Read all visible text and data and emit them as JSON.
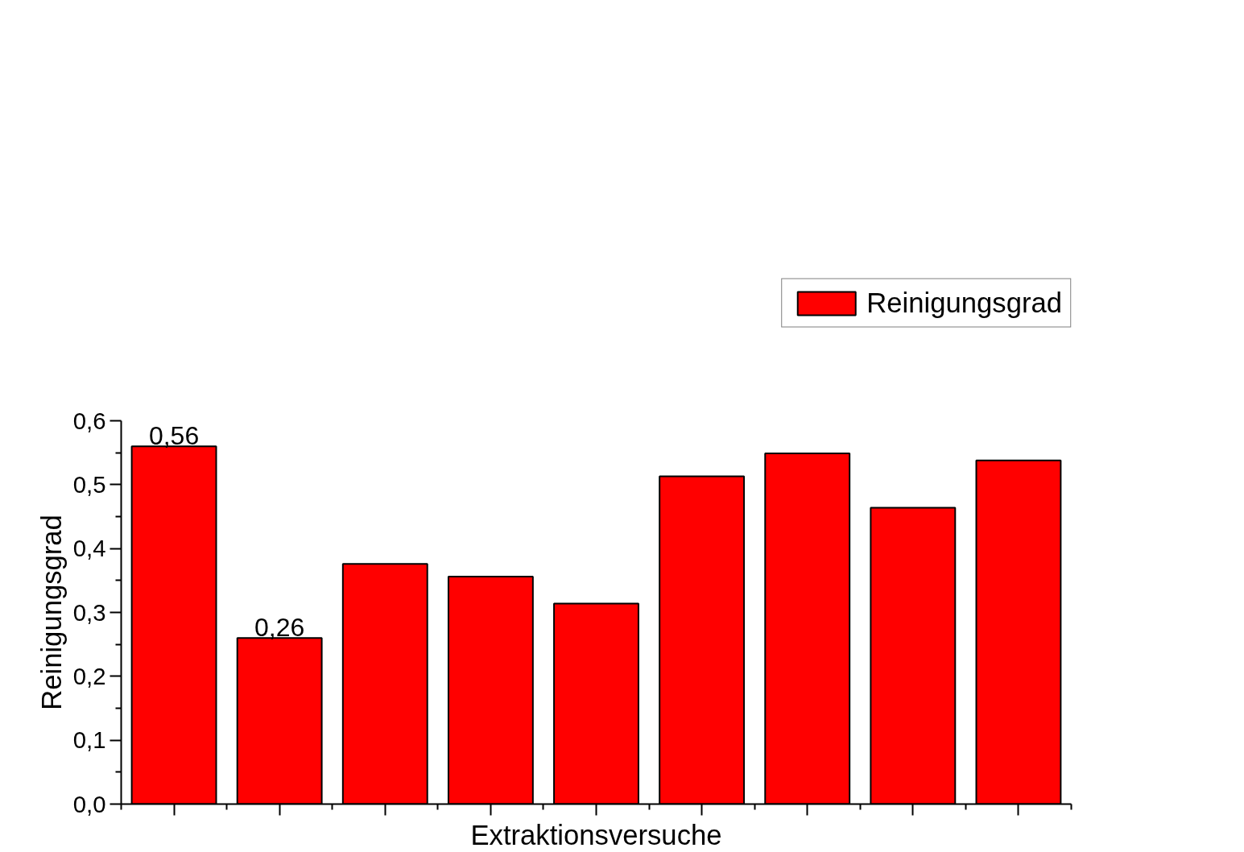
{
  "chart_data": {
    "type": "bar",
    "xlabel": "Extraktionsversuche",
    "ylabel": "Reinigungsgrad",
    "categories": [
      null,
      null,
      null,
      null,
      null,
      null,
      null,
      null,
      null
    ],
    "series": [
      {
        "name": "Reinigungsgrad",
        "color": "#ff0000",
        "values": [
          0.56,
          0.26,
          0.376,
          0.356,
          0.314,
          0.513,
          0.549,
          0.464,
          0.538
        ],
        "value_labels": [
          "0,56",
          "0,26",
          null,
          null,
          null,
          null,
          null,
          null,
          null
        ]
      }
    ],
    "ylim": [
      0,
      0.6
    ],
    "yticks": [
      {
        "value": 0,
        "label": "0,0"
      },
      {
        "value": 0.1,
        "label": "0,1"
      },
      {
        "value": 0.2,
        "label": "0,2"
      },
      {
        "value": 0.3,
        "label": "0,3"
      },
      {
        "value": 0.4,
        "label": "0,4"
      },
      {
        "value": 0.5,
        "label": "0,5"
      },
      {
        "value": 0.6,
        "label": "0,6"
      }
    ],
    "tick_labels": "y",
    "grid": false,
    "legend": "top right"
  }
}
